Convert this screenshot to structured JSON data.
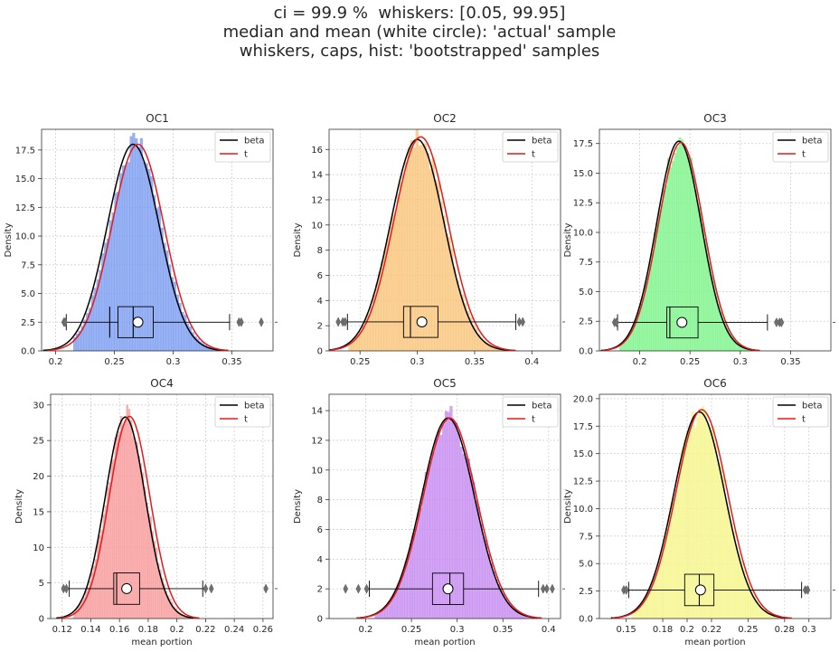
{
  "suptitle": {
    "line1": "ci = 99.9 %  whiskers: [0.05, 99.95]",
    "line2": "median and mean (white circle): 'actual' sample",
    "line3": "whiskers, caps, hist: 'bootstrapped' samples"
  },
  "chart_data": [
    {
      "type": "histogram",
      "title": "OC1",
      "xlabel": "",
      "ylabel": "Density",
      "xlim": [
        0.188,
        0.385
      ],
      "ylim": [
        0,
        19.3
      ],
      "xticks": [
        0.2,
        0.25,
        0.3,
        0.35
      ],
      "xtick_labels": [
        "0.2",
        "0.25",
        "0.3",
        "0.35"
      ],
      "yticks": [
        0,
        2.5,
        5,
        7.5,
        10,
        12.5,
        15,
        17.5
      ],
      "ytick_labels": [
        "0.0",
        "2.5",
        "5.0",
        "7.5",
        "10.0",
        "12.5",
        "15.0",
        "17.5"
      ],
      "hist_color": "#7b9cf0",
      "hist": {
        "mu": 0.268,
        "sigma": 0.0222,
        "peak": 18.0,
        "range": [
          0.215,
          0.355
        ],
        "bar_peak": 18.5
      },
      "series": [
        {
          "name": "beta",
          "color": "#000000",
          "mu": 0.266,
          "sigma": 0.0221,
          "peak": 18.0
        },
        {
          "name": "t",
          "color": "#e41a1c",
          "mu": 0.27,
          "sigma": 0.0222,
          "peak": 18.0
        }
      ],
      "legend": {
        "position": "top-right",
        "entries": [
          "beta",
          "t"
        ]
      },
      "box": {
        "y": 2.5,
        "q1": 0.253,
        "median": 0.266,
        "q3": 0.283,
        "mean": 0.27,
        "whisker_low": 0.209,
        "whisker_high": 0.348,
        "fliers": [
          0.207,
          0.208,
          0.356,
          0.358,
          0.375
        ],
        "mean_alt": 0.246
      }
    },
    {
      "type": "histogram",
      "title": "OC2",
      "xlabel": "",
      "ylabel": "Density",
      "xlim": [
        0.223,
        0.425
      ],
      "ylim": [
        0,
        17.6
      ],
      "xticks": [
        0.25,
        0.3,
        0.35,
        0.4
      ],
      "xtick_labels": [
        "0.25",
        "0.3",
        "0.35",
        "0.4"
      ],
      "yticks": [
        0,
        2,
        4,
        6,
        8,
        10,
        12,
        14,
        16
      ],
      "ytick_labels": [
        "0",
        "2",
        "4",
        "6",
        "8",
        "10",
        "12",
        "14",
        "16"
      ],
      "hist_color": "#f9c47a",
      "hist": {
        "mu": 0.301,
        "sigma": 0.0235,
        "peak": 16.8,
        "range": [
          0.24,
          0.39
        ],
        "bar_peak": 16.3
      },
      "series": [
        {
          "name": "beta",
          "color": "#000000",
          "mu": 0.3,
          "sigma": 0.0233,
          "peak": 16.8
        },
        {
          "name": "t",
          "color": "#e41a1c",
          "mu": 0.303,
          "sigma": 0.0236,
          "peak": 17.0
        }
      ],
      "legend": {
        "position": "top-right",
        "entries": [
          "beta",
          "t"
        ]
      },
      "box": {
        "y": 2.3,
        "q1": 0.288,
        "median": 0.294,
        "q3": 0.318,
        "mean": 0.304,
        "whisker_low": 0.239,
        "whisker_high": 0.386,
        "fliers": [
          0.231,
          0.235,
          0.237,
          0.389,
          0.392
        ]
      }
    },
    {
      "type": "histogram",
      "title": "OC3",
      "xlabel": "",
      "ylabel": "Density",
      "xlim": [
        0.16,
        0.39
      ],
      "ylim": [
        0,
        18.7
      ],
      "xticks": [
        0.2,
        0.25,
        0.3,
        0.35
      ],
      "xtick_labels": [
        "0.2",
        "0.25",
        "0.3",
        "0.35"
      ],
      "yticks": [
        0,
        2.5,
        5,
        7.5,
        10,
        12.5,
        15,
        17.5
      ],
      "ytick_labels": [
        "0.0",
        "2.5",
        "5.0",
        "7.5",
        "10.0",
        "12.5",
        "15.0",
        "17.5"
      ],
      "hist_color": "#7ef48a",
      "hist": {
        "mu": 0.24,
        "sigma": 0.0223,
        "peak": 17.7,
        "range": [
          0.18,
          0.325
        ],
        "bar_peak": 18.0
      },
      "series": [
        {
          "name": "beta",
          "color": "#000000",
          "mu": 0.239,
          "sigma": 0.0222,
          "peak": 17.7
        },
        {
          "name": "t",
          "color": "#e41a1c",
          "mu": 0.241,
          "sigma": 0.0224,
          "peak": 17.6
        }
      ],
      "legend": {
        "position": "top-right",
        "entries": [
          "beta",
          "t"
        ]
      },
      "box": {
        "y": 2.4,
        "q1": 0.227,
        "median": 0.23,
        "q3": 0.258,
        "mean": 0.242,
        "whisker_low": 0.178,
        "whisker_high": 0.327,
        "fliers": [
          0.175,
          0.177,
          0.336,
          0.339,
          0.341
        ]
      }
    },
    {
      "type": "histogram",
      "title": "OC4",
      "xlabel": "mean portion",
      "ylabel": "Density",
      "xlim": [
        0.112,
        0.267
      ],
      "ylim": [
        0,
        31.5
      ],
      "xticks": [
        0.12,
        0.14,
        0.16,
        0.18,
        0.2,
        0.22,
        0.24,
        0.26
      ],
      "xtick_labels": [
        "0.12",
        "0.14",
        "0.16",
        "0.18",
        "0.2",
        "0.22",
        "0.24",
        "0.26"
      ],
      "yticks": [
        0,
        5,
        10,
        15,
        20,
        25,
        30
      ],
      "ytick_labels": [
        "0",
        "5",
        "10",
        "15",
        "20",
        "25",
        "30"
      ],
      "hist_color": "#f79b9b",
      "hist": {
        "mu": 0.165,
        "sigma": 0.014,
        "peak": 28.3,
        "range": [
          0.128,
          0.215
        ],
        "bar_peak": 30.0
      },
      "series": [
        {
          "name": "beta",
          "color": "#000000",
          "mu": 0.164,
          "sigma": 0.0139,
          "peak": 28.3
        },
        {
          "name": "t",
          "color": "#e41a1c",
          "mu": 0.167,
          "sigma": 0.0141,
          "peak": 28.4
        }
      ],
      "legend": {
        "position": "top-right",
        "entries": [
          "beta",
          "t"
        ]
      },
      "box": {
        "y": 4.2,
        "q1": 0.156,
        "median": 0.158,
        "q3": 0.174,
        "mean": 0.165,
        "whisker_low": 0.125,
        "whisker_high": 0.218,
        "fliers": [
          0.121,
          0.123,
          0.22,
          0.224,
          0.262
        ]
      }
    },
    {
      "type": "histogram",
      "title": "OC5",
      "xlabel": "mean portion",
      "ylabel": "Density",
      "xlim": [
        0.16,
        0.413
      ],
      "ylim": [
        0,
        15.1
      ],
      "xticks": [
        0.2,
        0.25,
        0.3,
        0.35,
        0.4
      ],
      "xtick_labels": [
        "0.2",
        "0.25",
        "0.3",
        "0.35",
        "0.4"
      ],
      "yticks": [
        0,
        2,
        4,
        6,
        8,
        10,
        12,
        14
      ],
      "ytick_labels": [
        "0",
        "2",
        "4",
        "6",
        "8",
        "10",
        "12",
        "14"
      ],
      "hist_color": "#c58af0",
      "hist": {
        "mu": 0.291,
        "sigma": 0.029,
        "peak": 13.5,
        "range": [
          0.21,
          0.385
        ],
        "bar_peak": 14.3
      },
      "series": [
        {
          "name": "beta",
          "color": "#000000",
          "mu": 0.29,
          "sigma": 0.029,
          "peak": 13.5
        },
        {
          "name": "t",
          "color": "#e41a1c",
          "mu": 0.292,
          "sigma": 0.0292,
          "peak": 13.5
        }
      ],
      "legend": {
        "position": "top-right",
        "entries": [
          "beta",
          "t"
        ]
      },
      "box": {
        "y": 2.0,
        "q1": 0.273,
        "median": 0.292,
        "q3": 0.307,
        "mean": 0.29,
        "whisker_low": 0.204,
        "whisker_high": 0.389,
        "fliers": [
          0.178,
          0.192,
          0.201,
          0.394,
          0.398,
          0.404
        ]
      }
    },
    {
      "type": "histogram",
      "title": "OC6",
      "xlabel": "mean portion",
      "ylabel": "Density",
      "xlim": [
        0.128,
        0.318
      ],
      "ylim": [
        0,
        20.4
      ],
      "xticks": [
        0.15,
        0.18,
        0.2,
        0.22,
        0.25,
        0.28,
        0.3
      ],
      "xtick_labels": [
        "0.15",
        "0.18",
        "0.2",
        "0.22",
        "0.25",
        "0.28",
        "0.3"
      ],
      "yticks": [
        0,
        2.5,
        5,
        7.5,
        10,
        12.5,
        15,
        17.5,
        20
      ],
      "ytick_labels": [
        "0.0",
        "2.5",
        "5.0",
        "7.5",
        "10.0",
        "12.5",
        "15.0",
        "17.5",
        "20.0"
      ],
      "hist_color": "#f5f58a",
      "hist": {
        "mu": 0.211,
        "sigma": 0.021,
        "peak": 18.8,
        "range": [
          0.155,
          0.29
        ],
        "bar_peak": 19.3
      },
      "series": [
        {
          "name": "beta",
          "color": "#000000",
          "mu": 0.21,
          "sigma": 0.0209,
          "peak": 18.8
        },
        {
          "name": "t",
          "color": "#e41a1c",
          "mu": 0.212,
          "sigma": 0.0211,
          "peak": 19.0
        }
      ],
      "legend": {
        "position": "top-right",
        "entries": [
          "beta",
          "t"
        ]
      },
      "box": {
        "y": 2.6,
        "q1": 0.198,
        "median": 0.21,
        "q3": 0.222,
        "mean": 0.211,
        "whisker_low": 0.152,
        "whisker_high": 0.294,
        "fliers": [
          0.148,
          0.15,
          0.297,
          0.299
        ]
      }
    }
  ]
}
